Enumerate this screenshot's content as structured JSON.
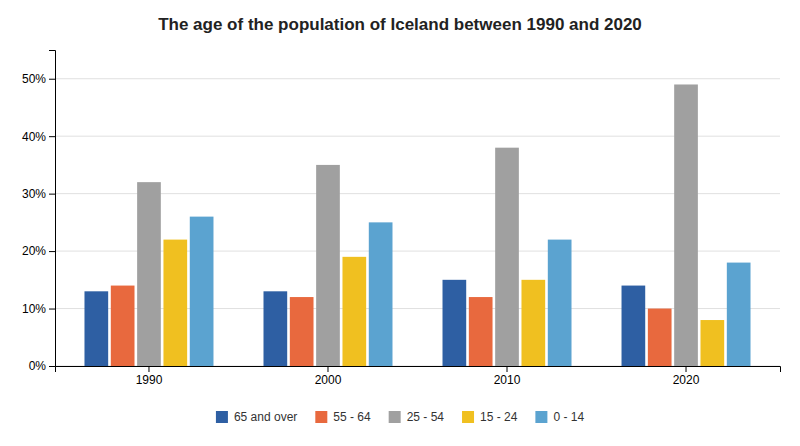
{
  "chart_data": {
    "type": "bar",
    "title": "The age of the population of Iceland between 1990 and 2020",
    "categories": [
      "1990",
      "2000",
      "2010",
      "2020"
    ],
    "series": [
      {
        "name": "65 and over",
        "color": "#2e5fa3",
        "values": [
          0.13,
          0.13,
          0.15,
          0.14
        ]
      },
      {
        "name": "55 - 64",
        "color": "#e8693e",
        "values": [
          0.14,
          0.12,
          0.12,
          0.1
        ]
      },
      {
        "name": "25 - 54",
        "color": "#a0a0a0",
        "values": [
          0.32,
          0.35,
          0.38,
          0.49
        ]
      },
      {
        "name": "15 - 24",
        "color": "#f0c020",
        "values": [
          0.22,
          0.19,
          0.15,
          0.08
        ]
      },
      {
        "name": "0 - 14",
        "color": "#5ba3d0",
        "values": [
          0.26,
          0.25,
          0.22,
          0.18
        ]
      }
    ],
    "ylim": [
      0,
      0.55
    ],
    "yticks": [
      {
        "value": 0.0,
        "label": "0%"
      },
      {
        "value": 0.1,
        "label": "10%"
      },
      {
        "value": 0.2,
        "label": "20%"
      },
      {
        "value": 0.3,
        "label": "30%"
      },
      {
        "value": 0.4,
        "label": "40%"
      },
      {
        "value": 0.5,
        "label": "50%"
      }
    ],
    "grid": true,
    "legend": "bottom"
  }
}
